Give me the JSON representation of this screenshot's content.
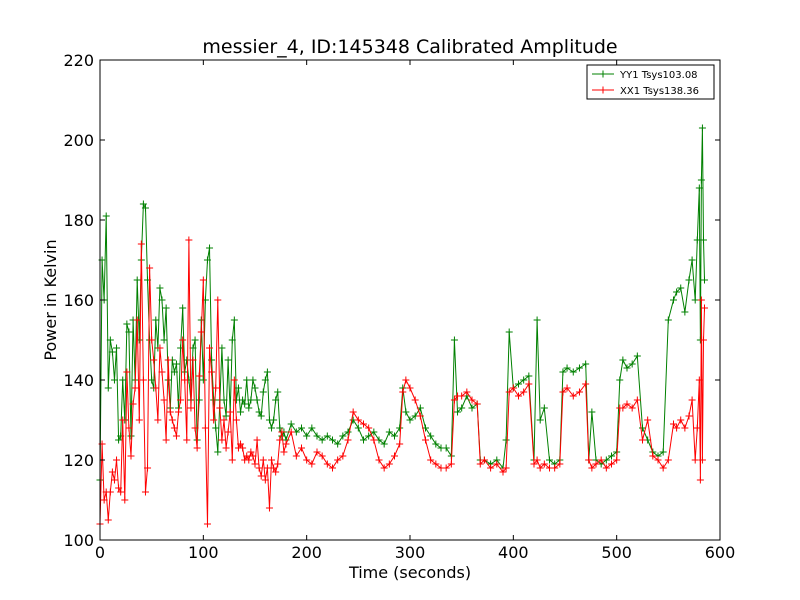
{
  "chart_data": {
    "type": "line",
    "title": "messier_4, ID:145348 Calibrated Amplitude",
    "xlabel": "Time (seconds)",
    "ylabel": "Power in Kelvin",
    "xlim": [
      0,
      600
    ],
    "ylim": [
      100,
      220
    ],
    "xticks": [
      0,
      100,
      200,
      300,
      400,
      500,
      600
    ],
    "yticks": [
      100,
      120,
      140,
      160,
      180,
      200,
      220
    ],
    "grid": false,
    "marker": "plus",
    "legend_position": "top-right",
    "series": [
      {
        "name": "YY1 Tsys103.08",
        "color": "#008000",
        "x": [
          0,
          2,
          4,
          6,
          8,
          10,
          12,
          14,
          16,
          18,
          20,
          22,
          24,
          26,
          28,
          30,
          32,
          34,
          36,
          38,
          40,
          42,
          44,
          46,
          48,
          50,
          52,
          54,
          56,
          58,
          60,
          62,
          64,
          66,
          68,
          70,
          72,
          74,
          76,
          78,
          80,
          82,
          84,
          86,
          88,
          90,
          92,
          94,
          96,
          98,
          100,
          102,
          104,
          106,
          108,
          110,
          112,
          114,
          116,
          118,
          120,
          122,
          124,
          126,
          128,
          130,
          132,
          134,
          136,
          138,
          140,
          142,
          144,
          146,
          148,
          150,
          152,
          154,
          156,
          158,
          160,
          162,
          164,
          166,
          168,
          170,
          172,
          174,
          176,
          178,
          180,
          185,
          190,
          195,
          200,
          205,
          210,
          215,
          220,
          225,
          230,
          235,
          240,
          245,
          250,
          255,
          260,
          265,
          270,
          275,
          280,
          285,
          290,
          293,
          296,
          300,
          305,
          310,
          315,
          320,
          325,
          330,
          335,
          340,
          343,
          346,
          350,
          355,
          360,
          365,
          368,
          372,
          378,
          384,
          390,
          393,
          396,
          400,
          405,
          410,
          415,
          420,
          423,
          426,
          430,
          435,
          440,
          445,
          448,
          452,
          458,
          464,
          470,
          473,
          476,
          480,
          485,
          490,
          495,
          500,
          503,
          506,
          510,
          515,
          520,
          525,
          530,
          535,
          540,
          545,
          550,
          555,
          558,
          562,
          566,
          570,
          573,
          576,
          578,
          580,
          581,
          582,
          583,
          584,
          585
        ],
        "y": [
          115,
          170,
          160,
          181,
          138,
          150,
          147,
          140,
          148,
          125,
          126,
          140,
          130,
          154,
          152,
          126,
          155,
          140,
          165,
          150,
          170,
          184,
          183,
          165,
          150,
          140,
          138,
          155,
          148,
          163,
          160,
          150,
          158,
          140,
          133,
          145,
          142,
          144,
          133,
          148,
          158,
          142,
          145,
          140,
          135,
          148,
          150,
          125,
          135,
          155,
          140,
          160,
          170,
          173,
          145,
          135,
          128,
          122,
          135,
          148,
          135,
          131,
          145,
          132,
          150,
          155,
          135,
          138,
          132,
          135,
          134,
          140,
          133,
          135,
          140,
          138,
          135,
          132,
          131,
          137,
          140,
          142,
          130,
          128,
          130,
          135,
          137,
          128,
          126,
          127,
          125,
          129,
          127,
          128,
          126,
          128,
          126,
          125,
          126,
          125,
          124,
          126,
          127,
          130,
          128,
          125,
          126,
          127,
          125,
          124,
          127,
          126,
          128,
          138,
          132,
          130,
          131,
          133,
          128,
          126,
          124,
          123,
          123,
          121,
          150,
          132,
          133,
          136,
          133,
          134,
          120,
          120,
          119,
          120,
          118,
          125,
          152,
          138,
          139,
          140,
          141,
          120,
          155,
          130,
          133,
          120,
          119,
          120,
          142,
          143,
          142,
          143,
          144,
          120,
          132,
          120,
          119,
          120,
          121,
          122,
          140,
          145,
          143,
          144,
          146,
          128,
          125,
          122,
          121,
          122,
          155,
          160,
          162,
          163,
          157,
          165,
          170,
          160,
          175,
          188,
          150,
          190,
          203,
          175,
          165
        ]
      },
      {
        "name": "XX1 Tsys138.36",
        "color": "#ff0000",
        "x": [
          0,
          2,
          4,
          6,
          8,
          10,
          12,
          14,
          16,
          18,
          20,
          22,
          24,
          26,
          28,
          30,
          32,
          34,
          36,
          38,
          40,
          42,
          44,
          46,
          48,
          50,
          52,
          54,
          56,
          58,
          60,
          62,
          64,
          66,
          68,
          70,
          72,
          74,
          76,
          78,
          80,
          82,
          84,
          86,
          88,
          90,
          92,
          94,
          96,
          98,
          100,
          102,
          104,
          106,
          108,
          110,
          112,
          114,
          116,
          118,
          120,
          122,
          124,
          126,
          128,
          130,
          132,
          134,
          136,
          138,
          140,
          142,
          144,
          146,
          148,
          150,
          152,
          154,
          156,
          158,
          160,
          162,
          164,
          166,
          168,
          170,
          172,
          174,
          176,
          178,
          180,
          185,
          190,
          195,
          200,
          205,
          210,
          215,
          220,
          225,
          230,
          235,
          240,
          245,
          250,
          255,
          260,
          265,
          270,
          275,
          280,
          285,
          290,
          293,
          296,
          300,
          305,
          310,
          315,
          320,
          325,
          330,
          335,
          340,
          343,
          346,
          350,
          355,
          360,
          365,
          368,
          372,
          378,
          384,
          390,
          393,
          396,
          400,
          405,
          410,
          415,
          420,
          423,
          426,
          430,
          435,
          440,
          445,
          448,
          452,
          458,
          464,
          470,
          473,
          476,
          480,
          485,
          490,
          495,
          500,
          503,
          506,
          510,
          515,
          520,
          525,
          530,
          535,
          540,
          545,
          550,
          555,
          558,
          562,
          566,
          570,
          573,
          576,
          578,
          580,
          581,
          582,
          583,
          584,
          585
        ],
        "y": [
          104,
          124,
          110,
          112,
          105,
          112,
          117,
          115,
          120,
          113,
          112,
          130,
          110,
          142,
          128,
          121,
          134,
          138,
          155,
          130,
          174,
          140,
          112,
          118,
          168,
          150,
          145,
          138,
          130,
          148,
          142,
          135,
          125,
          145,
          132,
          130,
          128,
          126,
          132,
          135,
          150,
          140,
          125,
          175,
          133,
          145,
          128,
          123,
          141,
          152,
          165,
          128,
          104,
          148,
          142,
          130,
          138,
          160,
          133,
          125,
          130,
          123,
          127,
          132,
          120,
          140,
          130,
          123,
          124,
          123,
          120,
          121,
          120,
          122,
          121,
          119,
          125,
          118,
          116,
          120,
          115,
          118,
          108,
          120,
          118,
          117,
          119,
          125,
          127,
          122,
          124,
          127,
          121,
          123,
          120,
          119,
          122,
          121,
          119,
          118,
          120,
          121,
          125,
          132,
          130,
          129,
          128,
          125,
          120,
          118,
          119,
          121,
          124,
          137,
          140,
          138,
          135,
          131,
          125,
          120,
          119,
          118,
          118,
          119,
          135,
          136,
          136,
          137,
          135,
          134,
          119,
          120,
          118,
          119,
          117,
          118,
          137,
          138,
          136,
          137,
          139,
          119,
          120,
          118,
          119,
          118,
          118,
          119,
          137,
          138,
          136,
          137,
          139,
          120,
          118,
          119,
          120,
          118,
          119,
          120,
          133,
          133,
          134,
          133,
          135,
          125,
          130,
          121,
          120,
          118,
          120,
          129,
          128,
          130,
          128,
          131,
          135,
          120,
          128,
          140,
          115,
          160,
          120,
          150,
          158
        ]
      }
    ]
  }
}
